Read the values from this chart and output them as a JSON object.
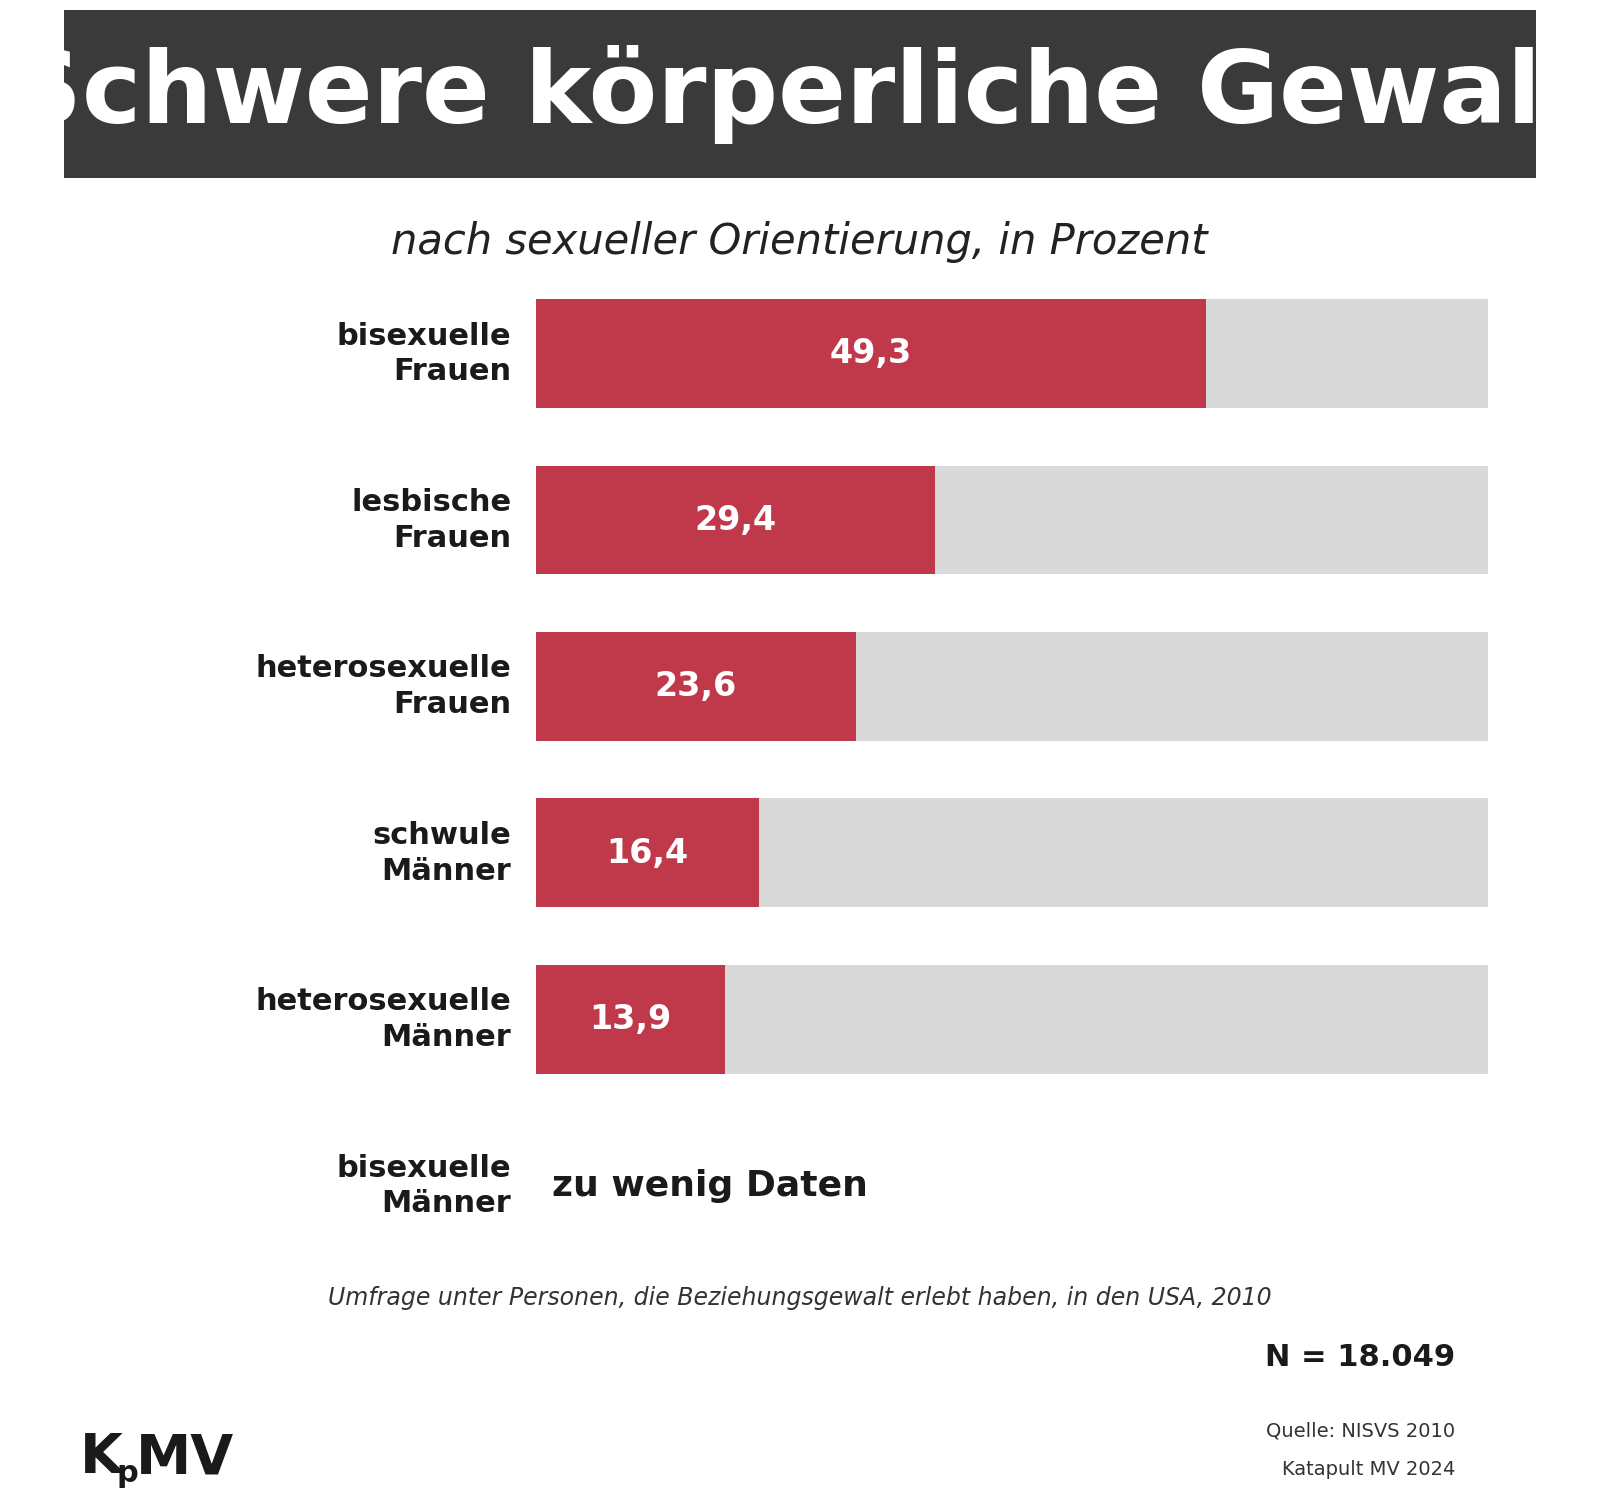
{
  "title": "Schwere körperliche Gewalt",
  "subtitle": "nach sexueller Orientierung, in Prozent",
  "title_bg_color": "#3a3a3a",
  "title_text_color": "#ffffff",
  "subtitle_text_color": "#222222",
  "categories": [
    "bisexuelle\nFrauen",
    "lesbische\nFrauen",
    "heterosexuelle\nFrauen",
    "schwule\nMänner",
    "heterosexuelle\nMänner",
    "bisexuelle\nMänner"
  ],
  "values": [
    49.3,
    29.4,
    23.6,
    16.4,
    13.9,
    null
  ],
  "value_labels": [
    "49,3",
    "29,4",
    "23,6",
    "16,4",
    "13,9",
    "zu wenig Daten"
  ],
  "bar_max": 70.0,
  "bar_color": "#c0394b",
  "bar_bg_color": "#d9d9d9",
  "bar_text_color": "#ffffff",
  "no_data_text_color": "#1a1a1a",
  "footnote": "Umfrage unter Personen, die Beziehungsgewalt erlebt haben, in den USA, 2010",
  "n_label": "N = 18.049",
  "source_line1": "Quelle: NISVS 2010",
  "source_line2": "Katapult MV 2024",
  "bg_color": "#ffffff"
}
